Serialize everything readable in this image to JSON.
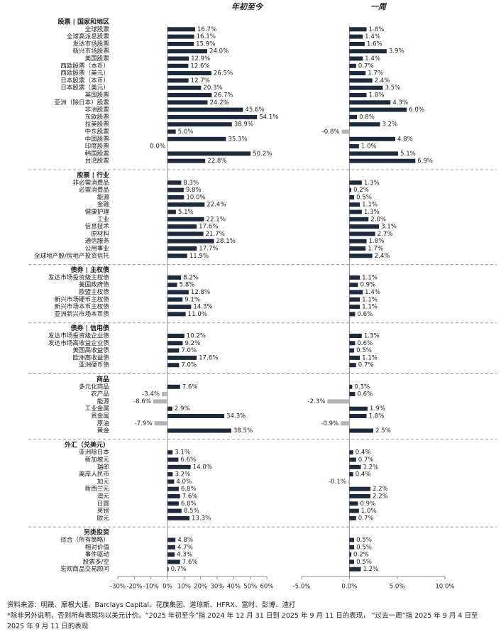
{
  "chart_data": {
    "type": "bar",
    "orientation": "horizontal",
    "groups": [
      {
        "name": "股票 | 国家和地区",
        "categories": [
          "全球股票",
          "全球高派息股票",
          "发达市场股票",
          "新兴市场股票",
          "美国股票",
          "西欧股票（本币）",
          "西欧股票（美元）",
          "日本股票（本币）",
          "日本股票（美元）",
          "英国股票",
          "亚洲（除日本）股票",
          "非洲股票",
          "东欧股票",
          "拉美股票",
          "中东股票",
          "中国股票",
          "印度股票",
          "韩国股票",
          "台湾股票"
        ]
      },
      {
        "name": "股票 | 行业",
        "categories": [
          "非必需消费品",
          "必需消费品",
          "能源",
          "金融",
          "健康护理",
          "工业",
          "信息技术",
          "原材料",
          "通信服务",
          "公用事业",
          "全球地产股/房地产投资信托"
        ]
      },
      {
        "name": "债券 | 主权债",
        "categories": [
          "发达市场投资级主权债",
          "美国政府债",
          "欧盟主权债",
          "新兴市场硬币主权债",
          "新兴市场本币主权债",
          "亚洲新兴市场本币债"
        ]
      },
      {
        "name": "债券 | 信用债",
        "categories": [
          "发达市场投资级企业债",
          "发达市场高收益企业债",
          "美国高收益债",
          "欧洲高收益债",
          "亚洲硬币债"
        ]
      },
      {
        "name": "商品",
        "categories": [
          "多元化商品",
          "农产品",
          "能源",
          "工业金属",
          "贵金属",
          "原油",
          "黄金"
        ]
      },
      {
        "name": "外汇（兑美元）",
        "categories": [
          "亚洲除日本",
          "新加坡元",
          "瑞郎",
          "离岸人民币",
          "加元",
          "新西兰元",
          "澳元",
          "日圆",
          "英镑",
          "欧元"
        ]
      },
      {
        "name": "另类投资",
        "categories": [
          "综合（所有策略）",
          "相对价值",
          "事件驱动",
          "股票多/空",
          "宏观商品交易顾问"
        ]
      }
    ],
    "series": [
      {
        "name": "年初至今",
        "color": "#1c2a3c",
        "negative_color": "#b4b4b4",
        "xlim": [
          -30,
          60
        ],
        "xticks": [
          {
            "value": -30,
            "label": "-30%"
          },
          {
            "value": -20,
            "label": "-20%"
          },
          {
            "value": -10,
            "label": "-10%"
          },
          {
            "value": 0,
            "label": "0%"
          },
          {
            "value": 10,
            "label": "10%"
          },
          {
            "value": 20,
            "label": "20%"
          },
          {
            "value": 30,
            "label": "30%"
          },
          {
            "value": 40,
            "label": "40%"
          },
          {
            "value": 50,
            "label": "50%"
          },
          {
            "value": 60,
            "label": "60%"
          }
        ],
        "values": [
          [
            16.7,
            16.1,
            15.9,
            24.0,
            12.9,
            12.6,
            26.5,
            12.7,
            20.3,
            26.7,
            24.2,
            45.6,
            54.1,
            38.9,
            5.0,
            35.3,
            0.0,
            50.2,
            22.8
          ],
          [
            8.3,
            9.8,
            10.0,
            22.4,
            5.1,
            22.1,
            17.6,
            21.7,
            28.1,
            17.7,
            11.9
          ],
          [
            8.2,
            5.8,
            12.8,
            9.1,
            14.3,
            11.0
          ],
          [
            10.2,
            9.2,
            7.0,
            17.6,
            7.0
          ],
          [
            7.6,
            -3.4,
            -8.6,
            2.9,
            34.3,
            -7.9,
            38.5
          ],
          [
            3.1,
            6.6,
            14.0,
            3.2,
            4.0,
            6.8,
            7.6,
            6.8,
            8.5,
            13.3
          ],
          [
            4.8,
            4.7,
            4.3,
            7.6,
            0.7
          ]
        ],
        "value_labels": [
          [
            "16.7%",
            "16.1%",
            "15.9%",
            "24.0%",
            "12.9%",
            "12.6%",
            "26.5%",
            "12.7%",
            "20.3%",
            "26.7%",
            "24.2%",
            "45.6%",
            "54.1%",
            "38.9%",
            "5.0%",
            "35.3%",
            "0.0%",
            "50.2%",
            "22.8%"
          ],
          [
            "8.3%",
            "9.8%",
            "10.0%",
            "22.4%",
            "5.1%",
            "22.1%",
            "17.6%",
            "21.7%",
            "28.1%",
            "17.7%",
            "11.9%"
          ],
          [
            "8.2%",
            "5.8%",
            "12.8%",
            "9.1%",
            "14.3%",
            "11.0%"
          ],
          [
            "10.2%",
            "9.2%",
            "7.0%",
            "17.6%",
            "7.0%"
          ],
          [
            "7.6%",
            "-3.4%",
            "-8.6%",
            "2.9%",
            "34.3%",
            "-7.9%",
            "38.5%"
          ],
          [
            "3.1%",
            "6.6%",
            "14.0%",
            "3.2%",
            "4.0%",
            "6.8%",
            "7.6%",
            "6.8%",
            "8.5%",
            "13.3%"
          ],
          [
            "4.8%",
            "4.7%",
            "4.3%",
            "7.6%",
            "0.7%"
          ]
        ]
      },
      {
        "name": "一周",
        "color": "#1c2a3c",
        "negative_color": "#b4b4b4",
        "xlim": [
          -5,
          10
        ],
        "xticks": [
          {
            "value": -5,
            "label": "-5.0%"
          },
          {
            "value": 0,
            "label": "0.0%"
          },
          {
            "value": 5,
            "label": "5.0%"
          },
          {
            "value": 10,
            "label": "10.0%"
          }
        ],
        "values": [
          [
            1.8,
            1.4,
            1.6,
            3.9,
            1.4,
            0.7,
            1.7,
            2.4,
            3.5,
            1.8,
            4.3,
            6.0,
            0.8,
            3.2,
            -0.8,
            4.8,
            1.0,
            5.1,
            6.9
          ],
          [
            1.3,
            0.2,
            0.5,
            1.1,
            1.3,
            2.0,
            3.1,
            2.7,
            1.8,
            1.7,
            2.4
          ],
          [
            1.1,
            0.9,
            1.4,
            1.1,
            1.1,
            0.6
          ],
          [
            1.3,
            0.6,
            0.5,
            1.1,
            0.7
          ],
          [
            0.3,
            0.6,
            -2.3,
            1.9,
            1.8,
            -0.9,
            2.5
          ],
          [
            0.4,
            0.7,
            1.2,
            0.4,
            -0.1,
            2.2,
            2.2,
            0.9,
            1.0,
            0.7
          ],
          [
            0.5,
            0.5,
            0.2,
            0.5,
            1.2
          ]
        ],
        "value_labels": [
          [
            "1.8%",
            "1.4%",
            "1.6%",
            "3.9%",
            "1.4%",
            "0.7%",
            "1.7%",
            "2.4%",
            "3.5%",
            "1.8%",
            "4.3%",
            "6.0%",
            "0.8%",
            "3.2%",
            "-0.8%",
            "4.8%",
            "1.0%",
            "5.1%",
            "6.9%"
          ],
          [
            "1.3%",
            "0.2%",
            "0.5%",
            "1.1%",
            "1.3%",
            "2.0%",
            "3.1%",
            "2.7%",
            "1.8%",
            "1.7%",
            "2.4%"
          ],
          [
            "1.1%",
            "0.9%",
            "1.4%",
            "1.1%",
            "1.1%",
            "0.6%"
          ],
          [
            "1.3%",
            "0.6%",
            "0.5%",
            "1.1%",
            "0.7%"
          ],
          [
            "0.3%",
            "0.6%",
            "-2.3%",
            "1.9%",
            "1.8%",
            "-0.9%",
            "2.5%"
          ],
          [
            "0.4%",
            "0.7%",
            "1.2%",
            "0.4%",
            "-0.1%",
            "2.2%",
            "2.2%",
            "0.9%",
            "1.0%",
            "0.7%"
          ],
          [
            "0.5%",
            "0.5%",
            "0.2%",
            "0.5%",
            "1.2%"
          ]
        ]
      }
    ],
    "source": "资料来源：明晟、摩根大通、Barclays Capital、花旗集团、道琼斯、HFRX、富时、彭博、渣打",
    "note": "*除非另外说明，否则所有表现均以美元计价。“2025 年初至今”指 2024 年 12 月 31 日到 2025 年 9 月 11 日的表现， “过去一周”指 2025 年 9 月 4 日至 2025 年 9 月 11 日的表现"
  }
}
